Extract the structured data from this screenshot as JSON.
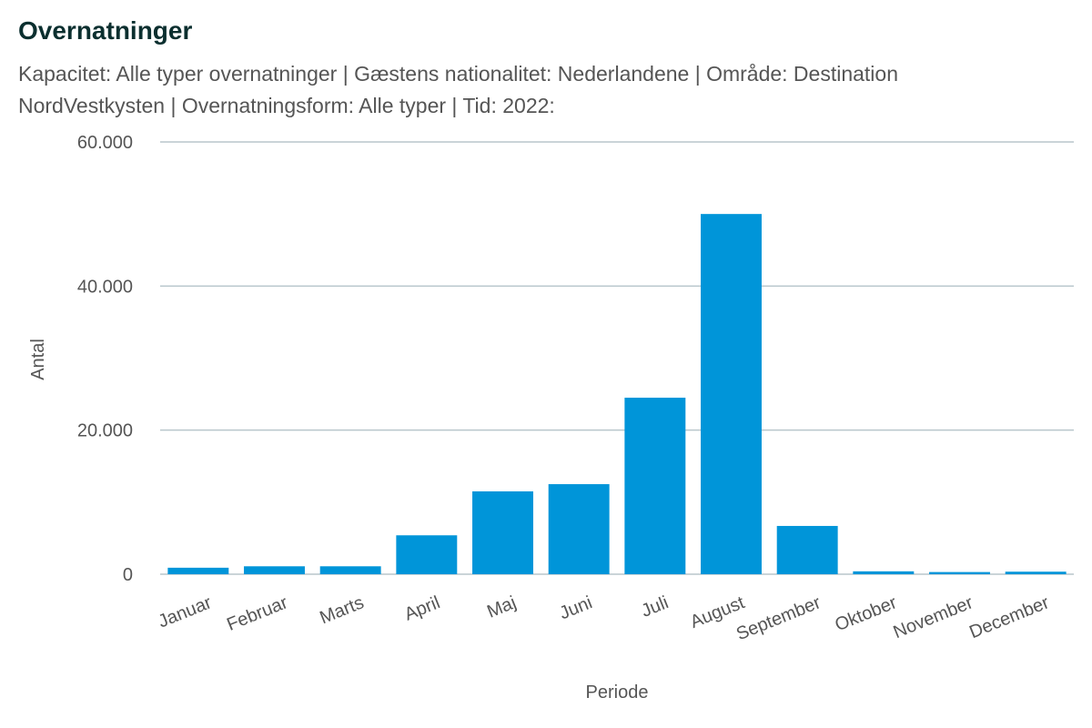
{
  "chart_data": {
    "type": "bar",
    "title": "Overnatninger",
    "subtitle": "Kapacitet: Alle typer overnatninger | Gæstens nationalitet: Nederlandene | Område: Destination NordVestkysten | Overnatningsform: Alle typer | Tid: 2022:",
    "xlabel": "Periode",
    "ylabel": "Antal",
    "categories": [
      "Januar",
      "Februar",
      "Marts",
      "April",
      "Maj",
      "Juni",
      "Juli",
      "August",
      "September",
      "Oktober",
      "November",
      "December"
    ],
    "values": [
      900,
      1100,
      1100,
      5400,
      11500,
      12500,
      24500,
      50000,
      6700,
      400,
      300,
      350
    ],
    "ylim": [
      0,
      60000
    ],
    "yticks": [
      0,
      20000,
      40000,
      60000
    ],
    "ytick_labels": [
      "0",
      "20.000",
      "40.000",
      "60.000"
    ],
    "grid": true,
    "legend": "none",
    "colors": {
      "bar": "#0095d9",
      "grid": "#b8c6cc",
      "title": "#0b2f2f",
      "text": "#555555"
    }
  }
}
